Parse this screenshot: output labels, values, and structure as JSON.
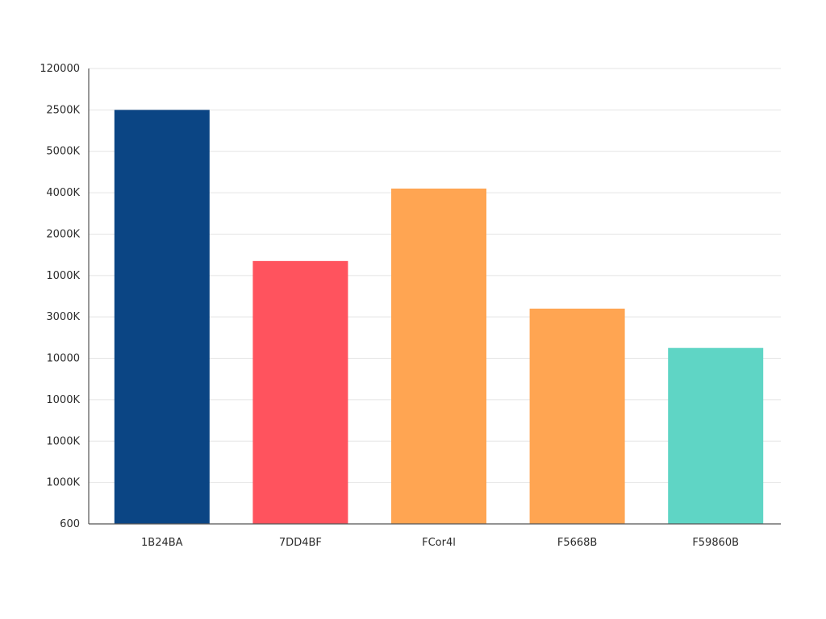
{
  "chart_data": {
    "type": "bar",
    "categories": [
      "1B24BA",
      "7DD4BF",
      "FCor4l",
      "F5668B",
      "F59860B"
    ],
    "values": [
      10.0,
      6.35,
      8.1,
      5.2,
      4.25
    ],
    "ylim": [
      0,
      11
    ],
    "y_tick_labels": [
      "600",
      "1000K",
      "1000K",
      "1000K",
      "10000",
      "3000K",
      "1000K",
      "2000K",
      "4000K",
      "5000K",
      "2500K",
      "120000"
    ],
    "colors": [
      "#0B4584",
      "#FF535E",
      "#FFA552",
      "#FFA552",
      "#5FD5C5"
    ],
    "grid": true,
    "legend": "none"
  }
}
